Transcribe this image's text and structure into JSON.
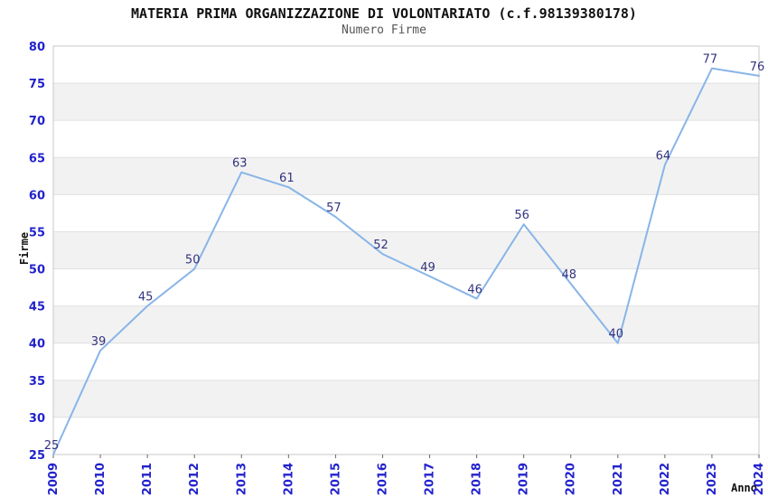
{
  "chart": {
    "title": "MATERIA PRIMA ORGANIZZAZIONE DI VOLONTARIATO (c.f.98139380178)",
    "subtitle": "Numero Firme"
  },
  "chart_data": {
    "type": "line",
    "title": "MATERIA PRIMA ORGANIZZAZIONE DI VOLONTARIATO (c.f.98139380178)",
    "subtitle": "Numero Firme",
    "xlabel": "Anno",
    "ylabel": "Firme",
    "x": [
      "2009",
      "2010",
      "2011",
      "2012",
      "2013",
      "2014",
      "2015",
      "2016",
      "2017",
      "2018",
      "2019",
      "2020",
      "2021",
      "2022",
      "2023",
      "2024"
    ],
    "series": [
      {
        "name": "Numero Firme",
        "values": [
          25,
          39,
          45,
          50,
          63,
          61,
          57,
          52,
          49,
          46,
          56,
          48,
          40,
          64,
          77,
          76
        ]
      }
    ],
    "ylim": [
      25,
      80
    ],
    "ytick_step": 5,
    "grid": true,
    "banded_background": true,
    "legend_position": "none",
    "data_labels_visible": true,
    "colors": {
      "line": "#88b5e8",
      "tick_label": "#2222cc",
      "data_label": "#333380",
      "gridline": "#e0e0e0",
      "band": "#f2f2f2",
      "plot_border": "#c8c8c8",
      "tick_mark": "#666666",
      "title": "#111111",
      "subtitle": "#555555"
    }
  }
}
